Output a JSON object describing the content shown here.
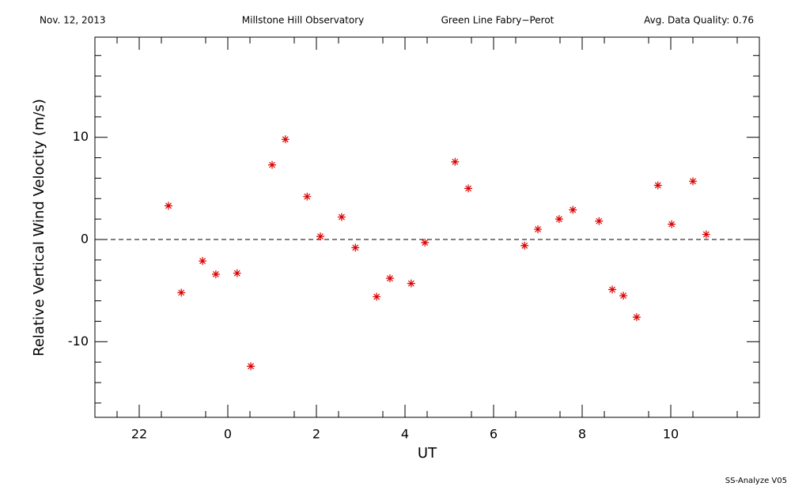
{
  "chart_data": {
    "type": "scatter",
    "header": [
      "Nov. 12, 2013",
      "Millstone Hill Observatory",
      "Green Line Fabry−Perot",
      "Avg. Data Quality: 0.76"
    ],
    "footer": "SS-Analyze V05",
    "xlabel": "UT",
    "ylabel": "Relative Vertical Wind Velocity (m/s)",
    "xlim": [
      -3,
      12
    ],
    "ylim": [
      -17.4,
      19.8
    ],
    "xticks": [
      {
        "value": -2,
        "label": "22"
      },
      0,
      2,
      4,
      6,
      8,
      10
    ],
    "xminorticks": [
      -2.5,
      -1.5,
      -0.5,
      0.5,
      1.5,
      2.5,
      3.5,
      4.5,
      5.5,
      6.5,
      7.5,
      8.5,
      9.5,
      10.5,
      11.5
    ],
    "yticks": [
      -10,
      0,
      10
    ],
    "yminorticks": [
      -16,
      -14,
      -12,
      -8,
      -6,
      -4,
      -2,
      2,
      4,
      6,
      8,
      12,
      14,
      16,
      18
    ],
    "hline": 0,
    "color": "#dd0000",
    "x": [
      -1.34,
      -1.05,
      -0.57,
      -0.27,
      0.21,
      0.52,
      1.0,
      1.3,
      1.79,
      2.09,
      2.57,
      2.88,
      3.36,
      3.66,
      4.14,
      4.45,
      5.13,
      5.43,
      6.7,
      7.0,
      7.48,
      7.79,
      8.38,
      8.68,
      8.93,
      9.23,
      9.71,
      10.02,
      10.5,
      10.8
    ],
    "values": [
      3.3,
      -5.2,
      -2.1,
      -3.4,
      -3.3,
      -12.4,
      7.3,
      9.8,
      4.2,
      0.3,
      2.2,
      -0.8,
      -5.6,
      -3.8,
      -4.3,
      -0.3,
      7.6,
      5.0,
      -0.6,
      1.0,
      2.0,
      2.9,
      1.8,
      -4.9,
      -5.5,
      -7.6,
      5.3,
      1.5,
      5.7,
      0.5
    ]
  }
}
